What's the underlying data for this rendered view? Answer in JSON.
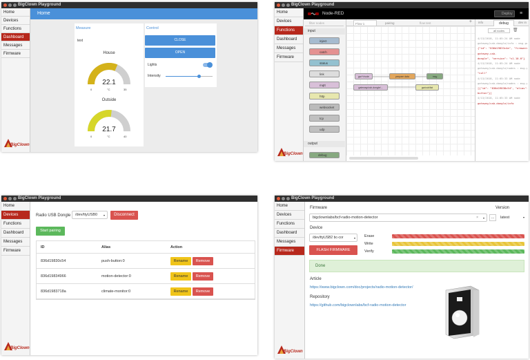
{
  "app_title": "BigClown Playground",
  "logo_text": "BigClown",
  "sidebar_home": [
    "Home",
    "Devices",
    "Functions",
    "Dashboard",
    "Messages",
    "Firmware"
  ],
  "sidebar_other": [
    "Home",
    "Devices",
    "Functions",
    "Dashboard",
    "Messages",
    "Firmware"
  ],
  "dashboard": {
    "header": "Home",
    "measure_title": "Measure",
    "control_title": "Control",
    "text_label": "text",
    "gauges": [
      {
        "title": "House",
        "value": 22.1,
        "display": "22.1",
        "unit": "°C",
        "min": "0",
        "max": "35",
        "fraction": 0.63,
        "color": "#d4b21a"
      },
      {
        "title": "Outside",
        "value": 21.7,
        "display": "21.7",
        "unit": "°C",
        "min": "0",
        "max": "40",
        "fraction": 0.54,
        "color": "#d6d62a"
      }
    ],
    "close_label": "CLOSE",
    "open_label": "OPEN",
    "lights_label": "Lights",
    "intensity_label": "Intensity",
    "intensity_fraction": 0.7,
    "accent": "#4a90d9"
  },
  "nodered": {
    "title": "Node-RED",
    "deploy_label": "Deploy",
    "filter_placeholder": "filter nodes",
    "tabs": [
      "Flow 1",
      "pairing",
      "flow test"
    ],
    "input_section": "input",
    "output_section": "output",
    "palette_nodes": [
      {
        "label": "inject",
        "color": "#a6bbcf"
      },
      {
        "label": "catch",
        "color": "#e49191"
      },
      {
        "label": "status",
        "color": "#94c1d0"
      },
      {
        "label": "link",
        "color": "#dddddd"
      },
      {
        "label": "mqtt",
        "color": "#d8bfd8"
      },
      {
        "label": "http",
        "color": "#e7e7ae"
      },
      {
        "label": "websocket",
        "color": "#bbbbbb"
      },
      {
        "label": "tcp",
        "color": "#c0c0c0"
      },
      {
        "label": "udp",
        "color": "#c0c0c0"
      }
    ],
    "output_nodes": [
      {
        "label": "debug",
        "color": "#87a980"
      }
    ],
    "flow_nodes": [
      {
        "label": "gw/+/node",
        "color": "#d8bfd8"
      },
      {
        "label": "prepare data",
        "color": "#e2a65c"
      },
      {
        "label": "msg",
        "color": "#87a980"
      },
      {
        "label": "gateway/usb-dongle/...",
        "color": "#d8bfd8"
      },
      {
        "label": "gw/usb/list",
        "color": "#e7e7ae"
      }
    ],
    "panel_tabs": [
      "info",
      "debug",
      "dev in"
    ],
    "all_nodes_label": "all nodes",
    "debug_lines": [
      "4/13/2018, 11:05:24 AM  node",
      "gateway/usb-dongle/info : msg.payload : string[77]",
      "{\"id\": \"836d19833c4a\", \"firmware\": \"bcf-",
      "gateway-usb-",
      "dongle\", \"version\": \"v1.10.0\"}",
      "4/13/2018, 11:05:24 AM  node",
      "gateway/usb-dongle/nodes : msg.payload : string[4]",
      "\"null\"",
      "4/13/2018, 11:05:33 AM  node",
      "gateway/usb-dongle/nodes : msg.payload : string[56]",
      "[{\"id\": \"836d19838c54\", \"alias\": \"push-",
      "button\"}]",
      "4/13/2018, 11:05:33 AM  node",
      "gateway/usb-dongle/info"
    ]
  },
  "devices": {
    "dongle_label": "Radio USB Dongle",
    "dongle_value": "/dev/ttyUSB0",
    "disconnect_label": "Disconnect",
    "pairing_label": "Start pairing",
    "columns": [
      "ID",
      "Alias",
      "Action"
    ],
    "rows": [
      {
        "id": "836d19830c54",
        "alias": "push-button:0"
      },
      {
        "id": "836d19834966",
        "alias": "motion-detector:0"
      },
      {
        "id": "836d1983718a",
        "alias": "climate-monitor:0"
      }
    ],
    "rename_label": "Rename",
    "remove_label": "Remove"
  },
  "firmware": {
    "firmware_label": "Firmware",
    "version_label": "Version",
    "firmware_value": "bigclownlabs/bcf-radio-motion-detector",
    "version_value": "latest",
    "device_label": "Device",
    "device_value": "/dev/ttyUSB2 bc-cor",
    "flash_label": "FLASH FIRMWARE",
    "erase_label": "Erase",
    "write_label": "Write",
    "verify_label": "Verify",
    "erase_color": "#d9534f",
    "write_color": "#e8c53a",
    "verify_color": "#5cb85c",
    "done_label": "Done",
    "article_label": "Article",
    "article_url": "https://www.bigclown.com/doc/projects/radio-motion-detector/",
    "repository_label": "Repository",
    "repository_url": "https://github.com/bigclownlabs/bcf-radio-motion-detector"
  }
}
